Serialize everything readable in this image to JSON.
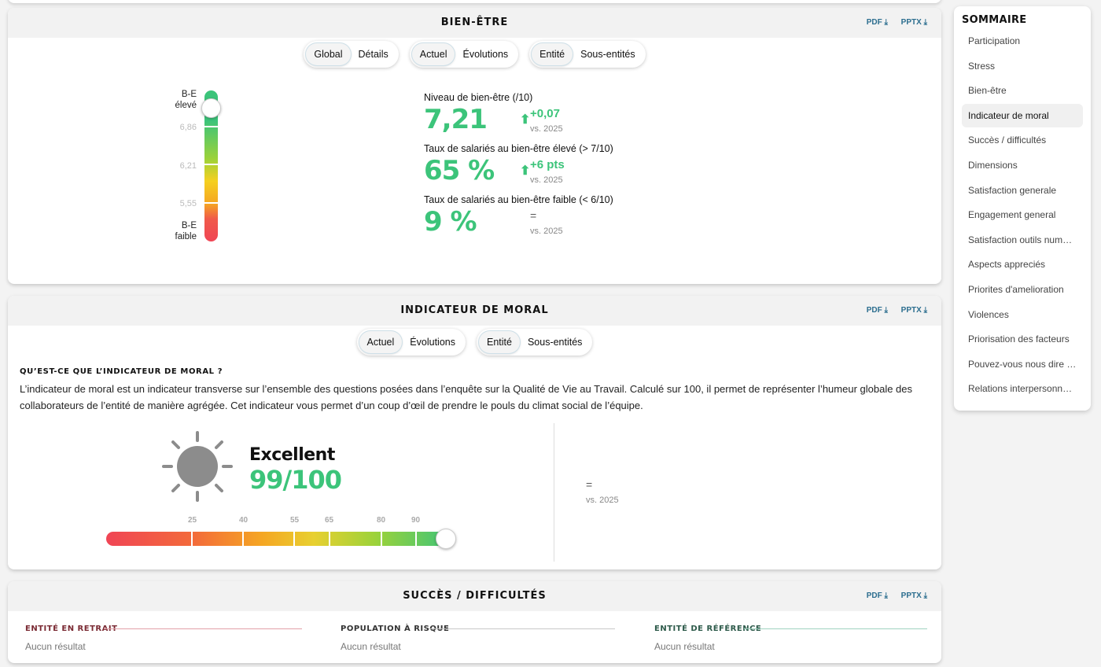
{
  "bien_etre": {
    "title": "BIEN-ÊTRE",
    "export_pdf": "PDF ⤓",
    "export_pptx": "PPTX ⤓",
    "toggles": [
      {
        "options": [
          "Global",
          "Détails"
        ],
        "active": 0
      },
      {
        "options": [
          "Actuel",
          "Évolutions"
        ],
        "active": 0
      },
      {
        "options": [
          "Entité",
          "Sous-entités"
        ],
        "active": 0
      }
    ],
    "gauge": {
      "top_label_1": "B-E",
      "top_label_2": "élevé",
      "bottom_label_1": "B-E",
      "bottom_label_2": "faible",
      "ticks": [
        "6,86",
        "6,21",
        "5,55"
      ],
      "level": 7.21
    },
    "kpis": [
      {
        "label": "Niveau de bien-être (/10)",
        "value": "7,21",
        "delta": "+0,07",
        "vs": "vs. 2025",
        "arrow": "⬆"
      },
      {
        "label": "Taux de salariés au bien-être élevé (> 7/10)",
        "value": "65 %",
        "delta": "+6 pts",
        "vs": "vs. 2025",
        "arrow": "⬆"
      },
      {
        "label": "Taux de salariés au bien-être faible (< 6/10)",
        "value": "9 %",
        "delta": "=",
        "vs": "vs. 2025",
        "arrow": ""
      }
    ]
  },
  "moral": {
    "title": "INDICATEUR DE MORAL",
    "export_pdf": "PDF ⤓",
    "export_pptx": "PPTX ⤓",
    "toggles": [
      {
        "options": [
          "Actuel",
          "Évolutions"
        ],
        "active": 0
      },
      {
        "options": [
          "Entité",
          "Sous-entités"
        ],
        "active": 0
      }
    ],
    "question": "QU’EST-CE QUE L’INDICATEUR DE MORAL ?",
    "description": "L’indicateur de moral est un indicateur transverse sur l’ensemble des questions posées dans l’enquête sur la Qualité de Vie au Travail. Calculé sur 100, il permet de représenter l’humeur globale des collaborateurs de l’entité de manière agrégée. Cet indicateur vous permet d’un coup d’œil de prendre le pouls du climat social de l’équipe.",
    "icon": "sun-icon",
    "rating": "Excellent",
    "score": "99/100",
    "score_value": 99,
    "scale_ticks": [
      "25",
      "40",
      "55",
      "65",
      "80",
      "90"
    ],
    "comparison": "=",
    "comparison_vs": "vs. 2025"
  },
  "succes": {
    "title": "SUCCÈS / DIFFICULTÉS",
    "export_pdf": "PDF ⤓",
    "export_pptx": "PPTX ⤓",
    "columns": [
      {
        "title": "ENTITÉ EN RETRAIT",
        "empty": "Aucun résultat",
        "color": "#7a2a33",
        "line_color": "#e2a0a8"
      },
      {
        "title": "POPULATION À RISQUE",
        "empty": "Aucun résultat",
        "color": "#333333",
        "line_color": "#c8c8c8"
      },
      {
        "title": "ENTITÉ DE RÉFÉRENCE",
        "empty": "Aucun résultat",
        "color": "#2d5a4a",
        "line_color": "#9fd2c0"
      }
    ]
  },
  "sidebar": {
    "title": "SOMMAIRE",
    "items": [
      "Participation",
      "Stress",
      "Bien-être",
      "Indicateur de moral",
      "Succès / difficultés",
      "Dimensions",
      "Satisfaction generale",
      "Engagement general",
      "Satisfaction outils numeriques",
      "Aspects appreciés",
      "Priorites d'amelioration",
      "Violences",
      "Priorisation des facteurs",
      "Pouvez-vous nous dire ce qui",
      "Relations interpersonnelles"
    ],
    "active_index": 3
  },
  "colors": {
    "accent_green": "#3cc47a",
    "export_blue": "#2c6e8f"
  }
}
